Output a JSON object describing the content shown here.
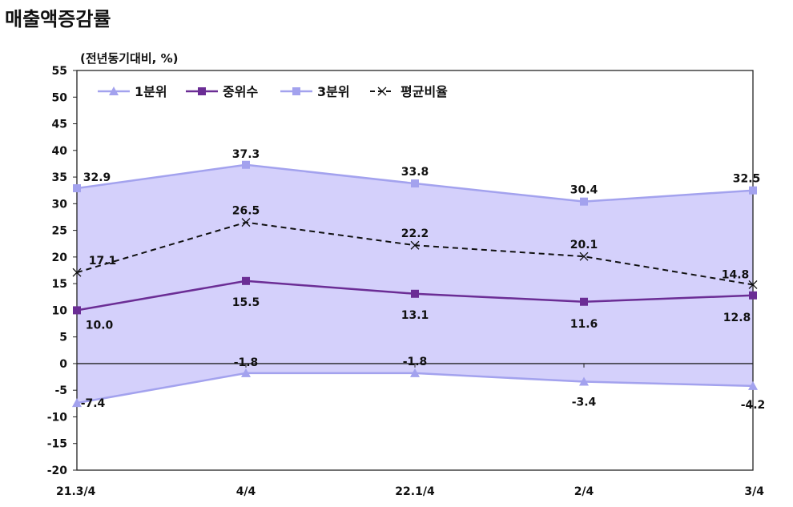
{
  "page": {
    "title": "매출액증감률",
    "unit_label": "(전년동기대비, %)"
  },
  "chart_data": {
    "type": "line",
    "categories": [
      "21.3/4",
      "4/4",
      "22.1/4",
      "2/4",
      "3/4"
    ],
    "ylim": [
      -20,
      55
    ],
    "yticks": [
      -20,
      -15,
      -10,
      -5,
      0,
      5,
      10,
      15,
      20,
      25,
      30,
      35,
      40,
      45,
      50,
      55
    ],
    "grid": false,
    "legend_position": "top-left",
    "band_fill_color": "#d4d0fb",
    "series": [
      {
        "name": "1분위",
        "color": "#a3a2ee",
        "marker": "triangle",
        "dash": false,
        "values": [
          -7.4,
          -1.8,
          -1.8,
          -3.4,
          -4.2
        ],
        "labels": [
          "-7.4",
          "-1.8",
          "-1.8",
          "-3.4",
          "-4.2"
        ]
      },
      {
        "name": "중위수",
        "color": "#6b2d95",
        "marker": "square",
        "dash": false,
        "values": [
          10.0,
          15.5,
          13.1,
          11.6,
          12.8
        ],
        "labels": [
          "10.0",
          "15.5",
          "13.1",
          "11.6",
          "12.8"
        ]
      },
      {
        "name": "3분위",
        "color": "#a3a2ee",
        "marker": "square",
        "dash": false,
        "values": [
          32.9,
          37.3,
          33.8,
          30.4,
          32.5
        ],
        "labels": [
          "32.9",
          "37.3",
          "33.8",
          "30.4",
          "32.5"
        ]
      },
      {
        "name": "평균비율",
        "color": "#111111",
        "marker": "x",
        "dash": true,
        "values": [
          17.1,
          26.5,
          22.2,
          20.1,
          14.8
        ],
        "labels": [
          "17.1",
          "26.5",
          "22.2",
          "20.1",
          "14.8"
        ]
      }
    ]
  }
}
